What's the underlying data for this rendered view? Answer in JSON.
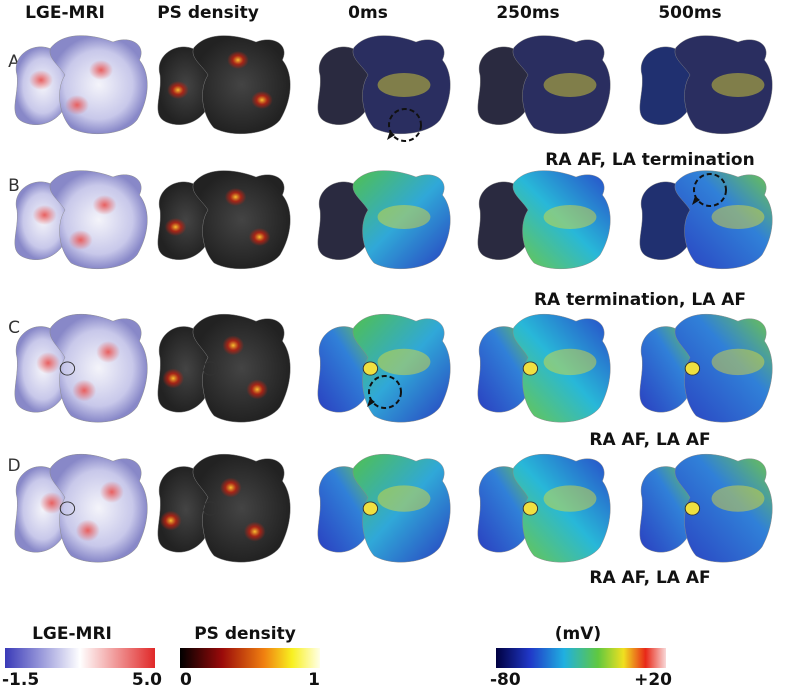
{
  "headers": [
    "LGE-MRI",
    "PS density",
    "0ms",
    "250ms",
    "500ms"
  ],
  "rows": [
    {
      "label": "A",
      "caption": "RA AF, LA termination"
    },
    {
      "label": "B",
      "caption": "RA termination, LA AF"
    },
    {
      "label": "C",
      "caption": "RA AF, LA AF"
    },
    {
      "label": "D",
      "caption": "RA AF, LA AF"
    }
  ],
  "colorbars": [
    {
      "title": "LGE-MRI",
      "min": "-1.5",
      "max": "5.0"
    },
    {
      "title": "PS density",
      "min": "0",
      "max": "1"
    },
    {
      "title": "(mV)",
      "min": "-80",
      "max": "+20"
    }
  ]
}
